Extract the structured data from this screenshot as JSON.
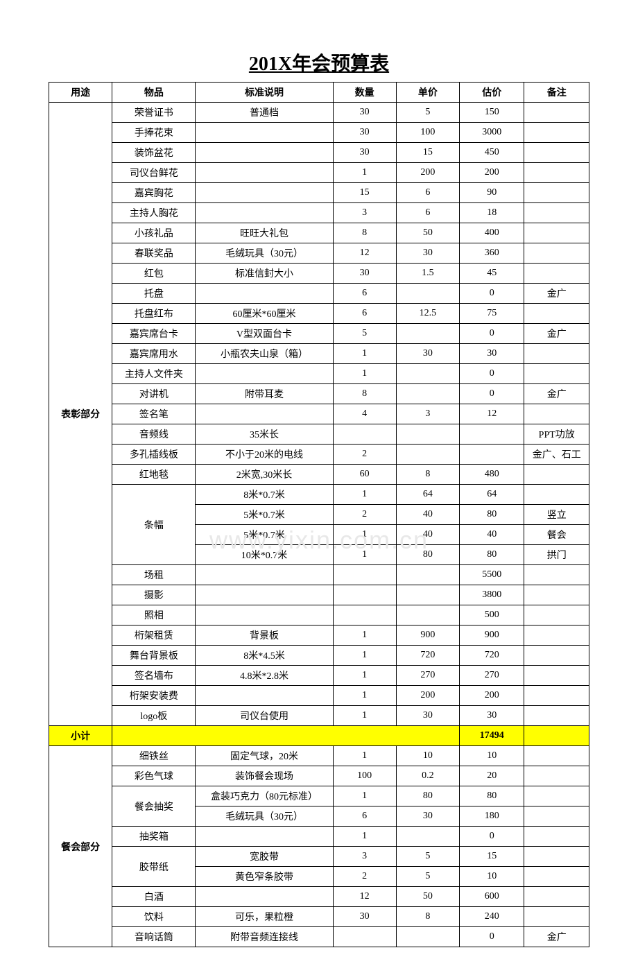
{
  "title": "201X年会预算表",
  "watermark": "www.yixin.com.cn",
  "headers": {
    "purpose": "用途",
    "item": "物品",
    "spec": "标准说明",
    "qty": "数量",
    "price": "单价",
    "est": "估价",
    "note": "备注"
  },
  "section1_label": "表彰部分",
  "section1_rows": [
    {
      "item": "荣誉证书",
      "spec": "普通档",
      "qty": "30",
      "price": "5",
      "est": "150",
      "note": ""
    },
    {
      "item": "手捧花束",
      "spec": "",
      "qty": "30",
      "price": "100",
      "est": "3000",
      "note": ""
    },
    {
      "item": "装饰盆花",
      "spec": "",
      "qty": "30",
      "price": "15",
      "est": "450",
      "note": ""
    },
    {
      "item": "司仪台鲜花",
      "spec": "",
      "qty": "1",
      "price": "200",
      "est": "200",
      "note": ""
    },
    {
      "item": "嘉宾胸花",
      "spec": "",
      "qty": "15",
      "price": "6",
      "est": "90",
      "note": ""
    },
    {
      "item": "主持人胸花",
      "spec": "",
      "qty": "3",
      "price": "6",
      "est": "18",
      "note": ""
    },
    {
      "item": "小孩礼品",
      "spec": "旺旺大礼包",
      "qty": "8",
      "price": "50",
      "est": "400",
      "note": ""
    },
    {
      "item": "春联奖品",
      "spec": "毛绒玩具（30元）",
      "qty": "12",
      "price": "30",
      "est": "360",
      "note": ""
    },
    {
      "item": "红包",
      "spec": "标准信封大小",
      "qty": "30",
      "price": "1.5",
      "est": "45",
      "note": ""
    },
    {
      "item": "托盘",
      "spec": "",
      "qty": "6",
      "price": "",
      "est": "0",
      "note": "金广"
    },
    {
      "item": "托盘红布",
      "spec": "60厘米*60厘米",
      "qty": "6",
      "price": "12.5",
      "est": "75",
      "note": ""
    },
    {
      "item": "嘉宾席台卡",
      "spec": "V型双面台卡",
      "qty": "5",
      "price": "",
      "est": "0",
      "note": "金广"
    },
    {
      "item": "嘉宾席用水",
      "spec": "小瓶农夫山泉（箱）",
      "qty": "1",
      "price": "30",
      "est": "30",
      "note": ""
    },
    {
      "item": "主持人文件夹",
      "spec": "",
      "qty": "1",
      "price": "",
      "est": "0",
      "note": ""
    },
    {
      "item": "对讲机",
      "spec": "附带耳麦",
      "qty": "8",
      "price": "",
      "est": "0",
      "note": "金广"
    },
    {
      "item": "签名笔",
      "spec": "",
      "qty": "4",
      "price": "3",
      "est": "12",
      "note": ""
    },
    {
      "item": "音频线",
      "spec": "35米长",
      "qty": "",
      "price": "",
      "est": "",
      "note": "PPT功放"
    },
    {
      "item": "多孔插线板",
      "spec": "不小于20米的电线",
      "qty": "2",
      "price": "",
      "est": "",
      "note": "金广、石工"
    },
    {
      "item": "红地毯",
      "spec": "2米宽,30米长",
      "qty": "60",
      "price": "8",
      "est": "480",
      "note": ""
    }
  ],
  "banner_label": "条幅",
  "banner_rows": [
    {
      "spec": "8米*0.7米",
      "qty": "1",
      "price": "64",
      "est": "64",
      "note": ""
    },
    {
      "spec": "5米*0.7米",
      "qty": "2",
      "price": "40",
      "est": "80",
      "note": "竖立"
    },
    {
      "spec": "5米*0.7米",
      "qty": "1",
      "price": "40",
      "est": "40",
      "note": "餐会"
    },
    {
      "spec": "10米*0.7米",
      "qty": "1",
      "price": "80",
      "est": "80",
      "note": "拱门"
    }
  ],
  "section1_rows_after": [
    {
      "item": "场租",
      "spec": "",
      "qty": "",
      "price": "",
      "est": "5500",
      "note": ""
    },
    {
      "item": "摄影",
      "spec": "",
      "qty": "",
      "price": "",
      "est": "3800",
      "note": ""
    },
    {
      "item": "照相",
      "spec": "",
      "qty": "",
      "price": "",
      "est": "500",
      "note": ""
    },
    {
      "item": "桁架租赁",
      "spec": "背景板",
      "qty": "1",
      "price": "900",
      "est": "900",
      "note": ""
    },
    {
      "item": "舞台背景板",
      "spec": "8米*4.5米",
      "qty": "1",
      "price": "720",
      "est": "720",
      "note": ""
    },
    {
      "item": "签名墙布",
      "spec": "4.8米*2.8米",
      "qty": "1",
      "price": "270",
      "est": "270",
      "note": ""
    },
    {
      "item": "桁架安装费",
      "spec": "",
      "qty": "1",
      "price": "200",
      "est": "200",
      "note": ""
    },
    {
      "item": "logo板",
      "spec": "司仪台使用",
      "qty": "1",
      "price": "30",
      "est": "30",
      "note": ""
    }
  ],
  "subtotal_label": "小计",
  "subtotal_value": "17494",
  "section2_label": "餐会部分",
  "section2_rows_before": [
    {
      "item": "细铁丝",
      "spec": "固定气球，20米",
      "qty": "1",
      "price": "10",
      "est": "10",
      "note": ""
    },
    {
      "item": "彩色气球",
      "spec": "装饰餐会现场",
      "qty": "100",
      "price": "0.2",
      "est": "20",
      "note": ""
    }
  ],
  "lottery_label": "餐会抽奖",
  "lottery_rows": [
    {
      "spec": "盒装巧克力（80元标准）",
      "qty": "1",
      "price": "80",
      "est": "80",
      "note": ""
    },
    {
      "spec": "毛绒玩具（30元）",
      "qty": "6",
      "price": "30",
      "est": "180",
      "note": ""
    }
  ],
  "section2_rows_mid": [
    {
      "item": "抽奖箱",
      "spec": "",
      "qty": "1",
      "price": "",
      "est": "0",
      "note": ""
    }
  ],
  "tape_label": "胶带纸",
  "tape_rows": [
    {
      "spec": "宽胶带",
      "qty": "3",
      "price": "5",
      "est": "15",
      "note": ""
    },
    {
      "spec": "黄色窄条胶带",
      "qty": "2",
      "price": "5",
      "est": "10",
      "note": ""
    }
  ],
  "section2_rows_after": [
    {
      "item": "白酒",
      "spec": "",
      "qty": "12",
      "price": "50",
      "est": "600",
      "note": ""
    },
    {
      "item": "饮料",
      "spec": "可乐，果粒橙",
      "qty": "30",
      "price": "8",
      "est": "240",
      "note": ""
    },
    {
      "item": "音响话筒",
      "spec": "附带音频连接线",
      "qty": "",
      "price": "",
      "est": "0",
      "note": "金广"
    }
  ],
  "colors": {
    "highlight": "#ffff00",
    "border": "#000000",
    "bg": "#ffffff",
    "text": "#000000"
  }
}
